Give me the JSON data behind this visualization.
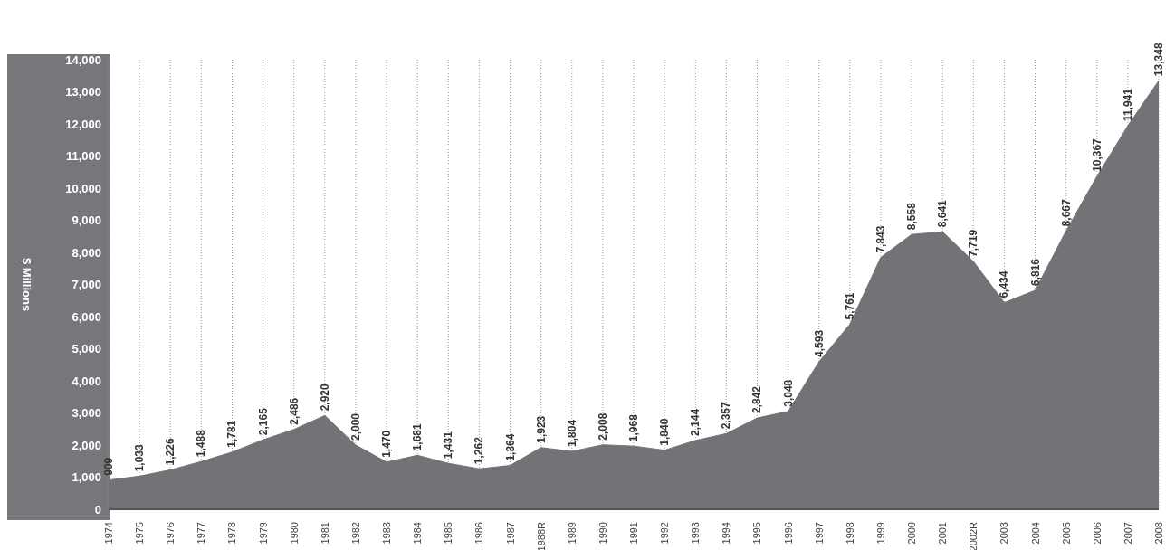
{
  "chart_data": {
    "type": "area",
    "ylabel": "$ Millions",
    "categories": [
      "1974",
      "1975",
      "1976",
      "1977",
      "1978",
      "1979",
      "1980",
      "1981",
      "1982",
      "1983",
      "1984",
      "1985",
      "1986",
      "1987",
      "1988R",
      "1989",
      "1990",
      "1991",
      "1992",
      "1993",
      "1994",
      "1995",
      "1996",
      "1997",
      "1998",
      "1999",
      "2000",
      "2001",
      "2002R",
      "2003",
      "2004",
      "2005",
      "2006",
      "2007",
      "2008"
    ],
    "values": [
      909,
      1033,
      1226,
      1488,
      1781,
      2165,
      2486,
      2920,
      2000,
      1470,
      1681,
      1431,
      1262,
      1364,
      1923,
      1804,
      2008,
      1968,
      1840,
      2144,
      2357,
      2842,
      3048,
      4593,
      5761,
      7843,
      8558,
      8641,
      7719,
      6434,
      6816,
      8667,
      10367,
      11941,
      13348
    ],
    "color": "#727376",
    "ylim": [
      0,
      14000
    ],
    "value_labels": [
      "909",
      "1,033",
      "1,226",
      "1,488",
      "1,781",
      "2,165",
      "2,486",
      "2,920",
      "2,000",
      "1,470",
      "1,681",
      "1,431",
      "1,262",
      "1,364",
      "1,923",
      "1,804",
      "2,008",
      "1,968",
      "1,840",
      "2,144",
      "2,357",
      "2,842",
      "3,048",
      "4,593",
      "5,761",
      "7,843",
      "8,558",
      "8,641",
      "7,719",
      "6,434",
      "6,816",
      "8,667",
      "10,367",
      "11,941",
      "13,348"
    ],
    "yticks": [
      0,
      {
        "value": 1000,
        "label": "1,000"
      },
      {
        "value": 2000,
        "label": "2,000"
      },
      {
        "value": 3000,
        "label": "3,000"
      },
      {
        "value": 4000,
        "label": "4,000"
      },
      {
        "value": 5000,
        "label": "5,000"
      },
      {
        "value": 6000,
        "label": "6,000"
      },
      {
        "value": 7000,
        "label": "7,000"
      },
      {
        "value": 8000,
        "label": "8,000"
      },
      {
        "value": 9000,
        "label": "9,000"
      },
      {
        "value": 10000,
        "label": "10,000"
      },
      {
        "value": 11000,
        "label": "11,000"
      },
      {
        "value": 12000,
        "label": "12,000"
      },
      {
        "value": 13000,
        "label": "13,000"
      },
      {
        "value": 14000,
        "label": "14,000"
      }
    ],
    "grid": "x"
  }
}
